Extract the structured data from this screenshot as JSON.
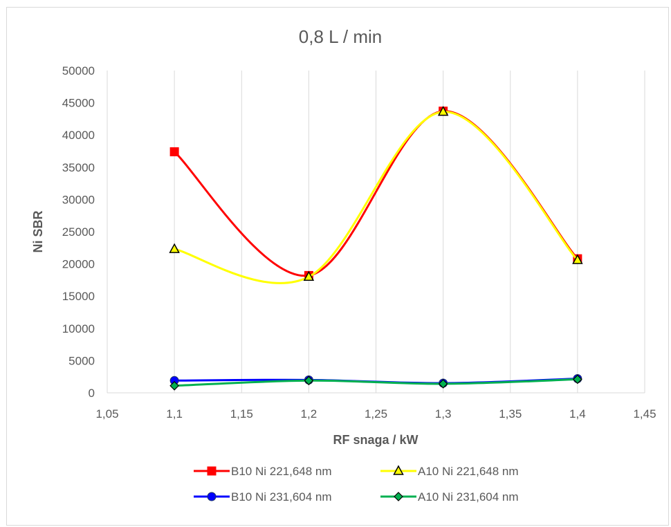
{
  "chart_data": {
    "type": "line",
    "title": "0,8 L / min",
    "xlabel": "RF snaga / kW",
    "ylabel": "Ni SBR",
    "xlim": [
      1.05,
      1.45
    ],
    "ylim": [
      0,
      50000
    ],
    "x_ticks": [
      "1,05",
      "1,1",
      "1,15",
      "1,2",
      "1,25",
      "1,3",
      "1,35",
      "1,4",
      "1,45"
    ],
    "y_ticks": [
      "0",
      "5000",
      "10000",
      "15000",
      "20000",
      "25000",
      "30000",
      "35000",
      "40000",
      "45000",
      "50000"
    ],
    "grid": "vertical",
    "legend_position": "bottom",
    "x": [
      1.1,
      1.2,
      1.3,
      1.4
    ],
    "series": [
      {
        "name": "B10 Ni 221,648 nm",
        "color": "#ff0000",
        "marker": "square",
        "marker_fill": "#ff0000",
        "values": [
          37400,
          18200,
          43700,
          20800
        ]
      },
      {
        "name": "A10 Ni 221,648 nm",
        "color": "#ffff00",
        "marker": "triangle",
        "marker_fill": "#ffff00",
        "values": [
          22300,
          18000,
          43600,
          20600
        ]
      },
      {
        "name": "B10 Ni 231,604 nm",
        "color": "#0000ff",
        "marker": "circle",
        "marker_fill": "#0000ff",
        "values": [
          1900,
          2000,
          1500,
          2200
        ]
      },
      {
        "name": "A10 Ni 231,604 nm",
        "color": "#00b050",
        "marker": "diamond",
        "marker_fill": "#00b050",
        "values": [
          1100,
          1900,
          1400,
          2100
        ]
      }
    ]
  }
}
